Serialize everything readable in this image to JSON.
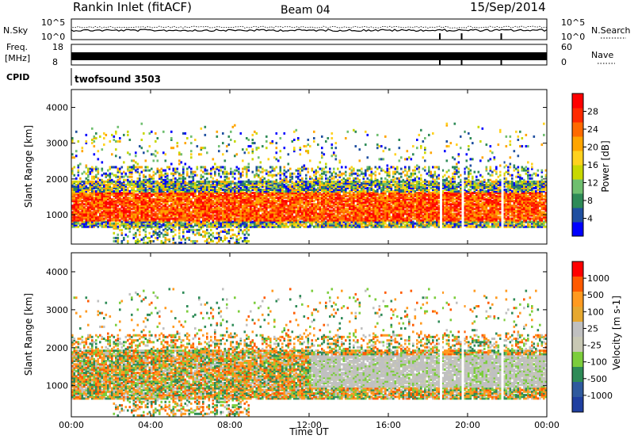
{
  "header": {
    "station": "Rankin Inlet (fitACF)",
    "beam": "Beam 04",
    "date": "15/Sep/2014"
  },
  "top_panels": {
    "nsky_label": "N.Sky",
    "nsky_ticks": [
      "10^5",
      "10^0"
    ],
    "nsearch_label": "N.Search",
    "nsearch_ticks": [
      "10^5",
      "10^0"
    ],
    "freq_label_1": "Freq.",
    "freq_label_2": "[MHz]",
    "freq_ticks": [
      "18",
      "8"
    ],
    "nave_label": "Nave",
    "nave_ticks": [
      "60",
      "0"
    ],
    "cpid_label": "CPID",
    "cpid_value": "twofsound 3503"
  },
  "colors": {
    "power_scale": [
      "#0000ff",
      "#1f4fa0",
      "#2e8b57",
      "#6fbf6f",
      "#c8d800",
      "#ffd21e",
      "#ffa500",
      "#ff6a00",
      "#ff2a00",
      "#ff0000"
    ],
    "velocity_scale": [
      "#ff0000",
      "#ff5a00",
      "#ff9a20",
      "#e6a830",
      "#c0c0c0",
      "#c8c8b4",
      "#7ccd3c",
      "#2e8b57",
      "#2f5a9e",
      "#1f3fa0"
    ]
  },
  "chart_data": [
    {
      "type": "heatmap",
      "name": "Power",
      "ylabel": "Slant Range [km]",
      "yticks": [
        "4000",
        "3000",
        "2000",
        "1000"
      ],
      "ylim": [
        180,
        4500
      ],
      "colorbar_label": "Power [dB]",
      "colorbar_ticks": [
        "28",
        "24",
        "20",
        "16",
        "12",
        "8",
        "4"
      ],
      "colorbar_range": [
        0,
        30
      ]
    },
    {
      "type": "heatmap",
      "name": "Velocity",
      "ylabel": "Slant Range [km]",
      "yticks": [
        "4000",
        "3000",
        "2000",
        "1000"
      ],
      "ylim": [
        180,
        4500
      ],
      "colorbar_label": "Velocity [m s-1]",
      "colorbar_ticks": [
        "1000",
        "500",
        "100",
        "25",
        "-25",
        "-100",
        "-500",
        "-1000"
      ]
    }
  ],
  "xaxis": {
    "label": "Time UT",
    "ticks": [
      "00:00",
      "04:00",
      "08:00",
      "12:00",
      "16:00",
      "20:00",
      "00:00"
    ],
    "range_hours": [
      0,
      24
    ]
  }
}
